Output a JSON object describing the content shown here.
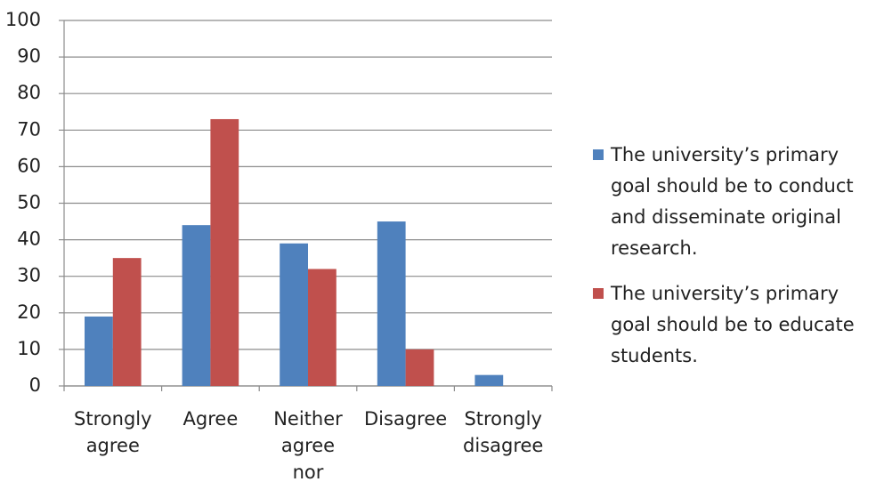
{
  "chart_data": {
    "type": "bar",
    "categories": [
      "Strongly agree",
      "Agree",
      "Neither agree nor",
      "Disagree",
      "Strongly disagree"
    ],
    "series": [
      {
        "name": "The university’s primary goal should be to conduct and disseminate original research.",
        "color": "#4f81bd",
        "values": [
          19,
          44,
          39,
          45,
          3
        ]
      },
      {
        "name": "The university’s primary goal should be to educate students.",
        "color": "#c0504d",
        "values": [
          35,
          73,
          32,
          10,
          0
        ]
      }
    ],
    "ylim": [
      0,
      100
    ],
    "yticks": [
      0,
      10,
      20,
      30,
      40,
      50,
      60,
      70,
      80,
      90,
      100
    ],
    "grid": true,
    "legend": "right"
  }
}
